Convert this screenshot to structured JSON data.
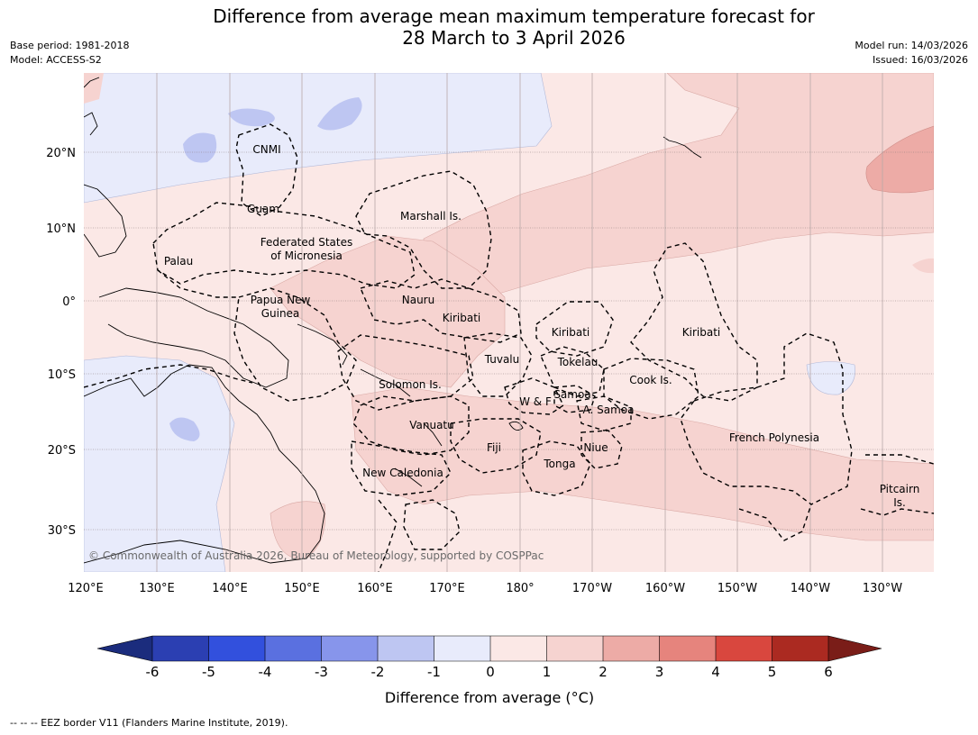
{
  "title": {
    "line1": "Difference from average mean maximum temperature forecast for",
    "line2": "28 March to 3 April 2026"
  },
  "meta": {
    "base_period": "Base period: 1981-2018",
    "model": "Model: ACCESS-S2",
    "model_run": "Model run: 14/03/2026",
    "issued": "Issued: 16/03/2026"
  },
  "axes": {
    "lon_labels": [
      "120°E",
      "130°E",
      "140°E",
      "150°E",
      "160°E",
      "170°E",
      "180°",
      "170°W",
      "160°W",
      "150°W",
      "140°W",
      "130°W"
    ],
    "lat_labels": [
      "20°N",
      "10°N",
      "0°",
      "10°S",
      "20°S",
      "30°S"
    ]
  },
  "places": {
    "cnmi": "CNMI",
    "guam": "Guam",
    "marshall": "Marshall Is.",
    "fsm1": "Federated States",
    "fsm2": "of Micronesia",
    "palau": "Palau",
    "png1": "Papua New",
    "png2": "Guinea",
    "nauru": "Nauru",
    "kiribati_w": "Kiribati",
    "kiribati_c": "Kiribati",
    "kiribati_e": "Kiribati",
    "tuvalu": "Tuvalu",
    "tokelau": "Tokelau",
    "cook": "Cook Is.",
    "solomon": "Solomon Is.",
    "wf": "W & F",
    "samoa": "Samoa",
    "asamoa": "A. Samoa",
    "vanuatu": "Vanuatu",
    "fiji": "Fiji",
    "niue": "Niue",
    "tonga": "Tonga",
    "newcal": "New Caledonia",
    "frpoly": "French Polynesia",
    "pitcairn1": "Pitcairn",
    "pitcairn2": "Is."
  },
  "copyright": "© Commonwealth of Australia 2026, Bureau of Meteorology, supported by COSPPac",
  "colorbar": {
    "label": "Difference from average (°C)",
    "ticks": [
      "-6",
      "-5",
      "-4",
      "-3",
      "-2",
      "-1",
      "0",
      "1",
      "2",
      "3",
      "4",
      "5",
      "6"
    ],
    "colors": {
      "below_-6": "#1b2c7d",
      "-6_-5": "#2b3fb2",
      "-5_-4": "#3250dd",
      "-4_-3": "#5a70e0",
      "-3_-2": "#8795eb",
      "-2_-1": "#bec6f2",
      "-1_0": "#e8ebfb",
      "0_1": "#fbe8e6",
      "1_2": "#f6d3d0",
      "2_3": "#edaba6",
      "3_4": "#e6847d",
      "4_5": "#d9473e",
      "5_6": "#ab2a21",
      "above_6": "#7a1d18"
    }
  },
  "footnote": "--  --  -- EEZ border V11 (Flanders Marine Institute, 2019)."
}
